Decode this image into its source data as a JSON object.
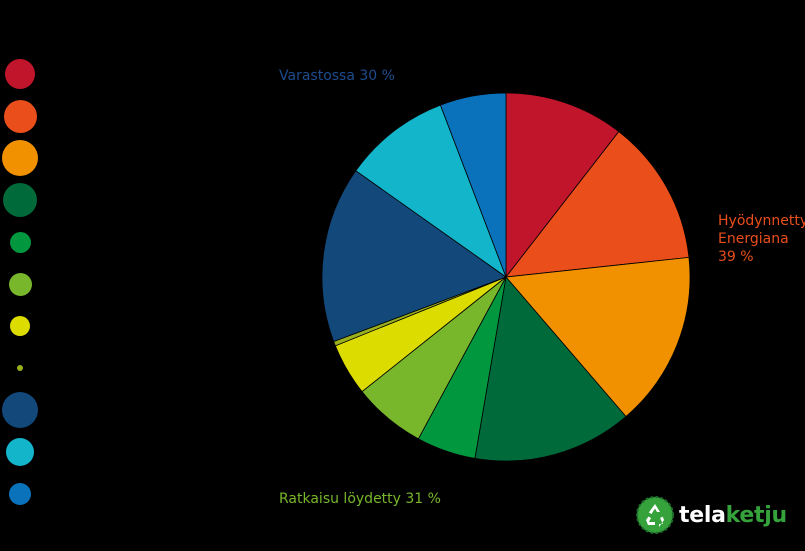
{
  "chart_data": {
    "type": "pie",
    "slices": [
      {
        "value": 10.5,
        "color": "#C0152A"
      },
      {
        "value": 12.8,
        "color": "#E94E1B"
      },
      {
        "value": 15.4,
        "color": "#F29100"
      },
      {
        "value": 14.0,
        "color": "#006A3B"
      },
      {
        "value": 5.2,
        "color": "#00973F"
      },
      {
        "value": 6.4,
        "color": "#78B62B"
      },
      {
        "value": 4.6,
        "color": "#DCDC00"
      },
      {
        "value": 0.4,
        "color": "#9AAF1E"
      },
      {
        "value": 15.5,
        "color": "#12497A"
      },
      {
        "value": 9.4,
        "color": "#13B5CB"
      },
      {
        "value": 5.8,
        "color": "#0A72BA"
      }
    ],
    "legend_placement": "left",
    "annotations": [
      {
        "text": "Varastossa 30 %",
        "color": "#1E4C8E"
      },
      {
        "text": "Hyödynnetty\nEnergiana\n39 %",
        "color": "#E94E1B"
      },
      {
        "text": "Ratkaisu löydetty 31 %",
        "color": "#78B62B"
      }
    ]
  },
  "logo": {
    "text_prefix": "tela",
    "text_suffix": "ketju",
    "prefix_color": "#FFFFFF",
    "suffix_color": "#35A23C",
    "icon": "recycle-icon"
  }
}
